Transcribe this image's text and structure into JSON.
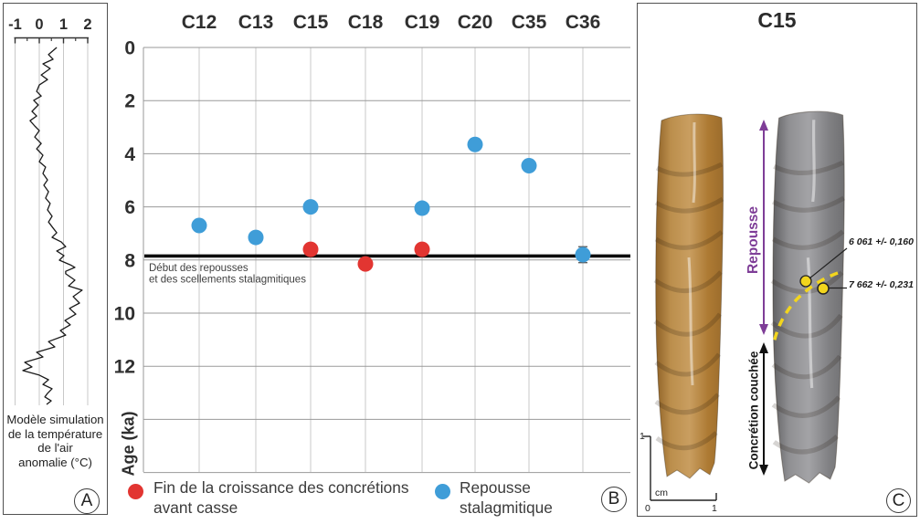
{
  "panel_a": {
    "letter": "A",
    "caption_lines": [
      "Modèle simulation",
      "de la température",
      "de l'air",
      "anomalie (°C)"
    ]
  },
  "panel_b": {
    "letter": "B",
    "axis_label": "Age (ka)",
    "reference_line_label_lines": [
      "Début des repousses",
      "et des scellements stalagmitiques"
    ],
    "legend": [
      {
        "lines": [
          "Fin de la croissance des concrétions",
          "avant casse"
        ],
        "color_key": "red"
      },
      {
        "lines": [
          "Repousse",
          "stalagmitique"
        ],
        "color_key": "blue"
      }
    ]
  },
  "panel_c": {
    "title": "C15",
    "letter": "C",
    "arrow_labels": {
      "repousse": "Repousse",
      "concretion": "Concrétion couchée"
    },
    "age_annotations": [
      {
        "label": "6 061 +/- 0,160"
      },
      {
        "label": "7 662 +/- 0,231"
      }
    ],
    "scale_bar": {
      "top": "1",
      "unit": "cm",
      "origin": "0",
      "end": "1"
    }
  },
  "colors": {
    "blue": "#3f9dd8",
    "red": "#e23531",
    "purple": "#7e3d97",
    "yellow": "#f2d51d",
    "grid_vertical": "#c9c9c9",
    "grid_horizontal": "#9a9a9a",
    "reference_line": "#0d0d0d"
  },
  "chart_data": [
    {
      "type": "line",
      "title": "Modèle simulation de la température de l'air anomalie (°C)",
      "xlabel": "anomalie (°C)",
      "xticks": [
        -1,
        0,
        1,
        2
      ],
      "xlim": [
        -1.1,
        2.1
      ],
      "grid": true,
      "note": "y axis is unlabeled depth/time increasing downward, expressed as fraction 0-1",
      "points": [
        [
          0.72,
          0.0
        ],
        [
          0.38,
          0.02
        ],
        [
          0.57,
          0.033
        ],
        [
          0.15,
          0.046
        ],
        [
          0.45,
          0.059
        ],
        [
          0.08,
          0.077
        ],
        [
          0.34,
          0.09
        ],
        [
          0.0,
          0.105
        ],
        [
          -0.11,
          0.123
        ],
        [
          0.08,
          0.136
        ],
        [
          -0.23,
          0.148
        ],
        [
          -0.04,
          0.161
        ],
        [
          -0.3,
          0.179
        ],
        [
          -0.11,
          0.192
        ],
        [
          -0.38,
          0.205
        ],
        [
          -0.19,
          0.22
        ],
        [
          0.0,
          0.233
        ],
        [
          -0.19,
          0.251
        ],
        [
          0.08,
          0.269
        ],
        [
          -0.11,
          0.284
        ],
        [
          0.15,
          0.302
        ],
        [
          0.0,
          0.32
        ],
        [
          0.26,
          0.335
        ],
        [
          0.15,
          0.353
        ],
        [
          0.34,
          0.371
        ],
        [
          0.19,
          0.386
        ],
        [
          0.38,
          0.404
        ],
        [
          0.26,
          0.422
        ],
        [
          0.45,
          0.437
        ],
        [
          0.34,
          0.455
        ],
        [
          0.53,
          0.473
        ],
        [
          0.38,
          0.489
        ],
        [
          0.57,
          0.506
        ],
        [
          0.72,
          0.519
        ],
        [
          0.53,
          0.532
        ],
        [
          0.91,
          0.545
        ],
        [
          1.09,
          0.558
        ],
        [
          0.72,
          0.57
        ],
        [
          1.02,
          0.583
        ],
        [
          0.83,
          0.596
        ],
        [
          1.28,
          0.609
        ],
        [
          1.47,
          0.616
        ],
        [
          1.09,
          0.627
        ],
        [
          1.09,
          0.634
        ],
        [
          1.47,
          0.652
        ],
        [
          1.21,
          0.668
        ],
        [
          1.77,
          0.68
        ],
        [
          1.4,
          0.698
        ],
        [
          1.66,
          0.716
        ],
        [
          1.25,
          0.731
        ],
        [
          1.51,
          0.747
        ],
        [
          1.06,
          0.765
        ],
        [
          1.28,
          0.777
        ],
        [
          0.87,
          0.793
        ],
        [
          1.09,
          0.806
        ],
        [
          0.38,
          0.824
        ],
        [
          0.64,
          0.839
        ],
        [
          -0.11,
          0.854
        ],
        [
          0.15,
          0.867
        ],
        [
          -0.6,
          0.882
        ],
        [
          -0.3,
          0.895
        ],
        [
          -0.68,
          0.905
        ],
        [
          0.0,
          0.918
        ],
        [
          0.38,
          0.931
        ],
        [
          0.15,
          0.944
        ],
        [
          0.53,
          0.956
        ],
        [
          0.34,
          0.969
        ],
        [
          0.23,
          0.979
        ],
        [
          0.49,
          0.99
        ],
        [
          0.3,
          1.0
        ]
      ]
    },
    {
      "type": "scatter",
      "categories": [
        "C12",
        "C13",
        "C15",
        "C18",
        "C19",
        "C20",
        "C35",
        "C36"
      ],
      "ylabel": "Age (ka)",
      "ylim": [
        0,
        16
      ],
      "yticks": [
        0,
        2,
        4,
        6,
        8,
        10,
        12
      ],
      "grid": true,
      "series": [
        {
          "name": "Fin de la croissance des concrétions avant casse",
          "color_key": "red",
          "points": [
            {
              "sample": "C15",
              "age": 7.6
            },
            {
              "sample": "C18",
              "age": 8.15
            },
            {
              "sample": "C19",
              "age": 7.6
            }
          ]
        },
        {
          "name": "Repousse stalagmitique",
          "color_key": "blue",
          "points": [
            {
              "sample": "C12",
              "age": 6.7
            },
            {
              "sample": "C13",
              "age": 7.15
            },
            {
              "sample": "C15",
              "age": 6.0
            },
            {
              "sample": "C19",
              "age": 6.05
            },
            {
              "sample": "C20",
              "age": 3.65
            },
            {
              "sample": "C35",
              "age": 4.45
            },
            {
              "sample": "C36",
              "age": 7.8,
              "error": 0.3
            }
          ]
        }
      ],
      "reference_line": {
        "age": 7.85,
        "label": "Début des repousses et des scellements stalagmitiques"
      }
    }
  ]
}
